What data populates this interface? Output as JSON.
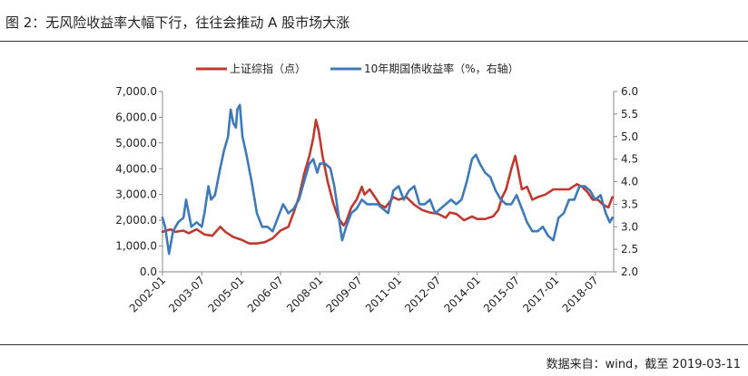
{
  "title": "图 2：无风险收益率大幅下行，往往会推动 A 股市场大涨",
  "source": "数据来自：wind，截至 2019-03-11",
  "colors": {
    "shanghai": "#C0392F",
    "bond": "#3E79B9",
    "axis": "#888888"
  },
  "chart_data": {
    "type": "line",
    "title": "",
    "legend_position": "top",
    "x_tick_labels": [
      "2002-01",
      "2003-07",
      "2005-01",
      "2006-07",
      "2008-01",
      "2009-07",
      "2011-01",
      "2012-07",
      "2014-01",
      "2015-07",
      "2017-01",
      "2018-07"
    ],
    "x_range": [
      2002.0,
      2019.2
    ],
    "y_left": {
      "range": [
        0,
        7000
      ],
      "ticks": [
        "0.0",
        "1,000.0",
        "2,000.0",
        "3,000.0",
        "4,000.0",
        "5,000.0",
        "6,000.0",
        "7,000.0"
      ]
    },
    "y_right": {
      "range": [
        2.0,
        6.0
      ],
      "ticks": [
        "2.0",
        "2.5",
        "3.0",
        "3.5",
        "4.0",
        "4.5",
        "5.0",
        "5.5",
        "6.0"
      ]
    },
    "series": [
      {
        "name": "上证综指（点）",
        "axis": "left",
        "x": [
          2002.0,
          2002.3,
          2002.5,
          2002.8,
          2003.0,
          2003.3,
          2003.6,
          2003.9,
          2004.2,
          2004.4,
          2004.7,
          2005.0,
          2005.3,
          2005.6,
          2005.9,
          2006.2,
          2006.5,
          2006.8,
          2007.0,
          2007.2,
          2007.4,
          2007.6,
          2007.75,
          2007.85,
          2007.95,
          2008.1,
          2008.3,
          2008.5,
          2008.7,
          2008.9,
          2009.0,
          2009.2,
          2009.4,
          2009.6,
          2009.7,
          2009.9,
          2010.1,
          2010.3,
          2010.5,
          2010.8,
          2011.0,
          2011.3,
          2011.6,
          2011.9,
          2012.2,
          2012.5,
          2012.8,
          2012.95,
          2013.2,
          2013.5,
          2013.8,
          2014.0,
          2014.3,
          2014.6,
          2014.8,
          2014.95,
          2015.1,
          2015.3,
          2015.45,
          2015.55,
          2015.7,
          2015.9,
          2016.1,
          2016.3,
          2016.6,
          2016.9,
          2017.2,
          2017.5,
          2017.8,
          2018.0,
          2018.2,
          2018.4,
          2018.6,
          2018.8,
          2019.0,
          2019.15
        ],
        "values": [
          1550,
          1650,
          1550,
          1600,
          1500,
          1650,
          1450,
          1400,
          1750,
          1550,
          1350,
          1250,
          1100,
          1100,
          1150,
          1300,
          1600,
          1750,
          2300,
          2900,
          3800,
          4500,
          5200,
          5900,
          5500,
          4500,
          3500,
          2700,
          2100,
          1800,
          1950,
          2500,
          2800,
          3300,
          3000,
          3200,
          2900,
          2600,
          2500,
          2900,
          2800,
          2900,
          2600,
          2400,
          2300,
          2250,
          2100,
          2300,
          2250,
          2000,
          2150,
          2050,
          2050,
          2150,
          2400,
          2900,
          3200,
          4000,
          4500,
          4000,
          3200,
          3300,
          2800,
          2900,
          3000,
          3200,
          3200,
          3200,
          3400,
          3300,
          3100,
          2800,
          2800,
          2600,
          2500,
          2900
        ]
      },
      {
        "name": "10年期国债收益率（%，右轴）",
        "axis": "right",
        "x": [
          2002.0,
          2002.1,
          2002.25,
          2002.4,
          2002.6,
          2002.8,
          2002.9,
          2003.1,
          2003.3,
          2003.5,
          2003.6,
          2003.75,
          2003.85,
          2004.0,
          2004.2,
          2004.35,
          2004.5,
          2004.6,
          2004.7,
          2004.8,
          2004.85,
          2004.95,
          2005.05,
          2005.2,
          2005.4,
          2005.6,
          2005.8,
          2006.0,
          2006.2,
          2006.4,
          2006.6,
          2006.8,
          2007.0,
          2007.2,
          2007.4,
          2007.6,
          2007.75,
          2007.9,
          2008.0,
          2008.2,
          2008.4,
          2008.55,
          2008.7,
          2008.85,
          2009.0,
          2009.2,
          2009.4,
          2009.6,
          2009.8,
          2010.0,
          2010.2,
          2010.4,
          2010.6,
          2010.8,
          2011.0,
          2011.2,
          2011.4,
          2011.6,
          2011.8,
          2012.0,
          2012.2,
          2012.4,
          2012.6,
          2012.8,
          2013.0,
          2013.2,
          2013.4,
          2013.6,
          2013.8,
          2013.95,
          2014.1,
          2014.3,
          2014.5,
          2014.7,
          2014.9,
          2015.1,
          2015.3,
          2015.5,
          2015.7,
          2015.9,
          2016.1,
          2016.3,
          2016.5,
          2016.7,
          2016.9,
          2017.1,
          2017.3,
          2017.5,
          2017.7,
          2017.9,
          2018.1,
          2018.3,
          2018.5,
          2018.7,
          2018.9,
          2019.05,
          2019.15
        ],
        "values": [
          3.2,
          3.0,
          2.4,
          2.9,
          3.1,
          3.2,
          3.6,
          3.0,
          3.1,
          3.0,
          3.3,
          3.9,
          3.6,
          3.7,
          4.3,
          4.7,
          5.0,
          5.6,
          5.3,
          5.2,
          5.6,
          5.7,
          5.0,
          4.6,
          4.0,
          3.3,
          3.0,
          3.0,
          2.9,
          3.2,
          3.5,
          3.3,
          3.4,
          3.6,
          4.0,
          4.4,
          4.5,
          4.2,
          4.4,
          4.4,
          4.3,
          3.9,
          3.3,
          2.7,
          3.0,
          3.3,
          3.4,
          3.6,
          3.5,
          3.5,
          3.5,
          3.4,
          3.3,
          3.8,
          3.9,
          3.6,
          3.8,
          3.9,
          3.5,
          3.5,
          3.6,
          3.3,
          3.4,
          3.5,
          3.6,
          3.5,
          3.6,
          4.0,
          4.5,
          4.6,
          4.4,
          4.2,
          4.1,
          3.8,
          3.6,
          3.5,
          3.5,
          3.7,
          3.4,
          3.1,
          2.9,
          2.9,
          3.0,
          2.8,
          2.7,
          3.2,
          3.3,
          3.6,
          3.6,
          3.9,
          3.9,
          3.8,
          3.6,
          3.7,
          3.3,
          3.1,
          3.2
        ]
      }
    ]
  }
}
